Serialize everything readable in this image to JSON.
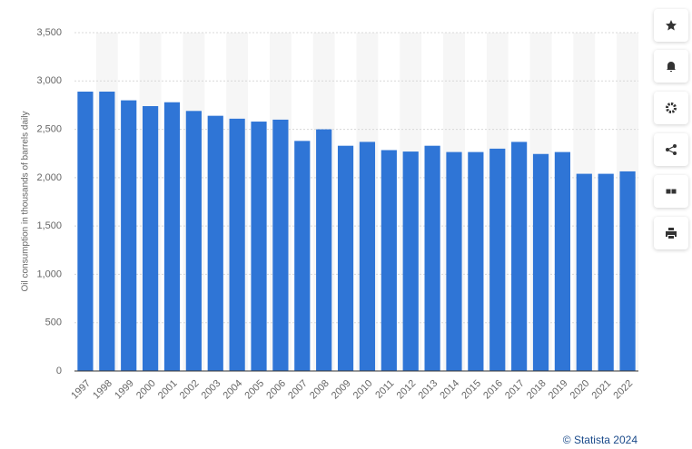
{
  "chart_data": {
    "type": "bar",
    "y_label": "Oil consumption in thousands of barrels daily",
    "categories": [
      "1997",
      "1998",
      "1999",
      "2000",
      "2001",
      "2002",
      "2003",
      "2004",
      "2005",
      "2006",
      "2007",
      "2008",
      "2009",
      "2010",
      "2011",
      "2012",
      "2013",
      "2014",
      "2015",
      "2016",
      "2017",
      "2018",
      "2019",
      "2020",
      "2021",
      "2022"
    ],
    "values": [
      2890,
      2890,
      2800,
      2740,
      2780,
      2690,
      2640,
      2610,
      2580,
      2600,
      2380,
      2500,
      2330,
      2370,
      2285,
      2270,
      2330,
      2265,
      2265,
      2300,
      2370,
      2245,
      2265,
      2040,
      2040,
      2065
    ],
    "color": "#2f75d6",
    "ylim": [
      0,
      3500
    ],
    "yticks": [
      0,
      500,
      {
        "value": 1000,
        "label": "1,000"
      },
      {
        "value": 1500,
        "label": "1,500"
      },
      {
        "value": 2000,
        "label": "2,000"
      },
      {
        "value": 2500,
        "label": "2,500"
      },
      {
        "value": 3000,
        "label": "3,000"
      },
      {
        "value": 3500,
        "label": "3,500"
      }
    ],
    "grid": true
  },
  "footer": {
    "credit": "© Statista 2024"
  }
}
